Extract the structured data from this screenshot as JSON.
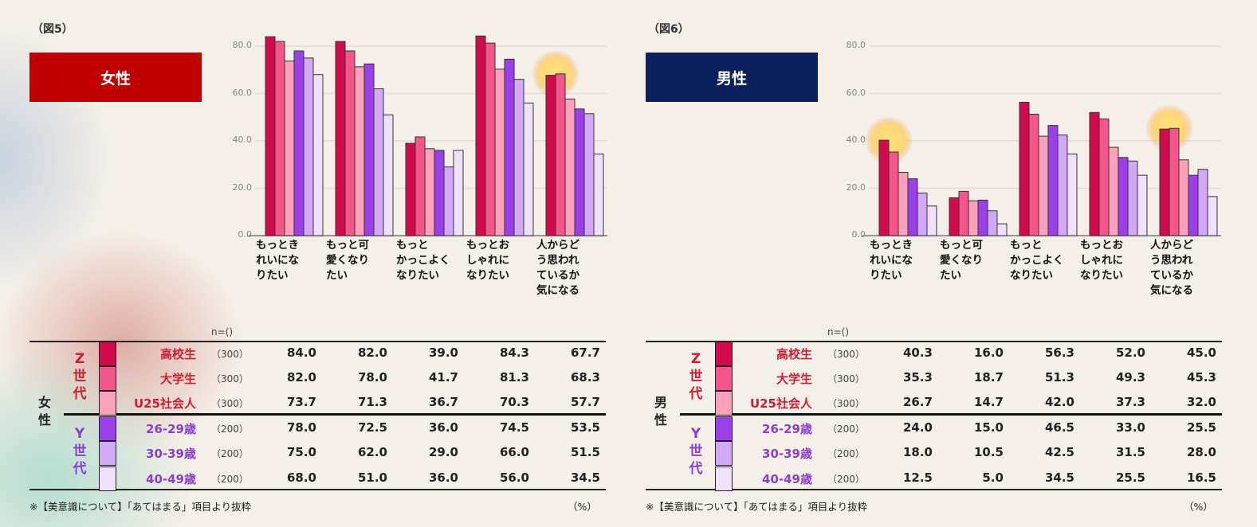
{
  "colors": [
    "#d40a4e",
    "#f4558a",
    "#fca0bc",
    "#9b3fe8",
    "#d1a9f5",
    "#efe0fb"
  ],
  "row_label_colors": [
    "#d11b2e",
    "#d11b2e",
    "#d11b2e",
    "#8a3fd0",
    "#8a3fd0",
    "#8a3fd0"
  ],
  "panels": [
    {
      "fig_label": "（図5）",
      "title": "女性",
      "title_color": "#c00000",
      "gender_label": "女\n性",
      "z_label": "Z\n世\n代",
      "y_label": "Y\n世\n代",
      "n_header": "n=()",
      "footnote": "※【美意識について】「あてはまる」項目より抜粋",
      "unit": "（%）",
      "highlight_groups": [
        4
      ]
    },
    {
      "fig_label": "（図6）",
      "title": "男性",
      "title_color": "#0a1f5c",
      "gender_label": "男\n性",
      "z_label": "Z\n世\n代",
      "y_label": "Y\n世\n代",
      "n_header": "n=()",
      "footnote": "※【美意識について】「あてはまる」項目より抜粋",
      "unit": "（%）",
      "highlight_groups": [
        0,
        4
      ]
    }
  ],
  "chart_data": [
    {
      "type": "bar",
      "title": "女性",
      "ylim": [
        0,
        80
      ],
      "yticks": [
        "0.0",
        "20.0",
        "40.0",
        "60.0",
        "80.0"
      ],
      "categories": [
        "もっとき\nれいにな\nりたい",
        "もっと可\n愛くなり\nたい",
        "もっと\nかっこよく\nなりたい",
        "もっとお\nしゃれに\nなりたい",
        "人からど\nう思われ\nているか\n気になる"
      ],
      "series": [
        {
          "name": "高校生",
          "n": "（300）",
          "values": [
            84.0,
            82.0,
            39.0,
            84.3,
            67.7
          ]
        },
        {
          "name": "大学生",
          "n": "（300）",
          "values": [
            82.0,
            78.0,
            41.7,
            81.3,
            68.3
          ]
        },
        {
          "name": "U25社会人",
          "n": "（300）",
          "values": [
            73.7,
            71.3,
            36.7,
            70.3,
            57.7
          ]
        },
        {
          "name": "26-29歳",
          "n": "（200）",
          "values": [
            78.0,
            72.5,
            36.0,
            74.5,
            53.5
          ]
        },
        {
          "name": "30-39歳",
          "n": "（200）",
          "values": [
            75.0,
            62.0,
            29.0,
            66.0,
            51.5
          ]
        },
        {
          "name": "40-49歳",
          "n": "（200）",
          "values": [
            68.0,
            51.0,
            36.0,
            56.0,
            34.5
          ]
        }
      ]
    },
    {
      "type": "bar",
      "title": "男性",
      "ylim": [
        0,
        80
      ],
      "yticks": [
        "0.0",
        "20.0",
        "40.0",
        "60.0",
        "80.0"
      ],
      "categories": [
        "もっとき\nれいにな\nりたい",
        "もっと可\n愛くなり\nたい",
        "もっと\nかっこよく\nなりたい",
        "もっとお\nしゃれに\nなりたい",
        "人からど\nう思われ\nているか\n気になる"
      ],
      "series": [
        {
          "name": "高校生",
          "n": "（300）",
          "values": [
            40.3,
            16.0,
            56.3,
            52.0,
            45.0
          ]
        },
        {
          "name": "大学生",
          "n": "（300）",
          "values": [
            35.3,
            18.7,
            51.3,
            49.3,
            45.3
          ]
        },
        {
          "name": "U25社会人",
          "n": "（300）",
          "values": [
            26.7,
            14.7,
            42.0,
            37.3,
            32.0
          ]
        },
        {
          "name": "26-29歳",
          "n": "（200）",
          "values": [
            24.0,
            15.0,
            46.5,
            33.0,
            25.5
          ]
        },
        {
          "name": "30-39歳",
          "n": "（200）",
          "values": [
            18.0,
            10.5,
            42.5,
            31.5,
            28.0
          ]
        },
        {
          "name": "40-49歳",
          "n": "（200）",
          "values": [
            12.5,
            5.0,
            34.5,
            25.5,
            16.5
          ]
        }
      ]
    }
  ]
}
